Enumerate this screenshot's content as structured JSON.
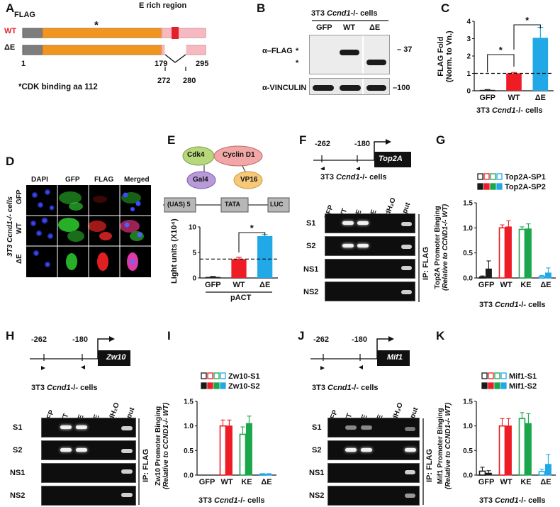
{
  "panel_A": {
    "label": "A",
    "flag_label": "FLAG",
    "region_label": "E rich region",
    "wt_label": "WT",
    "de_label": "ΔE",
    "star": "*",
    "pos_1": "1",
    "pos_179": "179",
    "pos_295": "295",
    "pos_272": "272",
    "pos_280": "280",
    "note": "*CDK binding aa 112",
    "colors": {
      "flag": "#7d7d7d",
      "core": "#f0951f",
      "erich": "#f6b9bf",
      "mark": "#e3202a"
    }
  },
  "panel_B": {
    "label": "B",
    "cells_prefix": "3T3 ",
    "cells_gene": "Ccnd1",
    "cells_suffix": "-/- cells",
    "lanes": [
      "GFP",
      "WT",
      "ΔE"
    ],
    "row1_label": "α–FLAG",
    "row2_label": "α-VINCULIN",
    "mw1": "37",
    "mw2": "100",
    "star1": "*",
    "star2": "*"
  },
  "panel_C": {
    "label": "C",
    "ylabel1": "FLAG Fold",
    "ylabel2": "(Norm. to Vn.)",
    "sig1": "*",
    "sig2": "*",
    "cells_prefix": "3T3 ",
    "cells_gene": "Ccnd1",
    "cells_suffix": "-/- cells"
  },
  "panel_D": {
    "label": "D",
    "cols": [
      "DAPI",
      "GFP",
      "FLAG",
      "Merged"
    ],
    "rows": [
      "GFP",
      "WT",
      "ΔE"
    ],
    "side_label": "3T3 Ccnd1-/- cells"
  },
  "panel_E": {
    "label": "E",
    "cdk4": "Cdk4",
    "cyclin": "Cyclin D1",
    "gal4": "Gal4",
    "vp16": "VP16",
    "uas": "(UAS) 5",
    "tata": "TATA",
    "luc": "LUC",
    "ylabel": "Light units (X10⁴)",
    "sig": "*",
    "group": "pACT"
  },
  "panel_F": {
    "label": "F",
    "pos1": "-262",
    "pos2": "-180",
    "gene": "Top2A",
    "cells_prefix": "3T3 ",
    "cells_gene": "Ccnd1",
    "cells_suffix": "-/- cells",
    "lanes": [
      "GFP",
      "WT",
      "KE",
      "ΔE",
      "ddH₂O",
      "Input"
    ],
    "rows": [
      "S1",
      "S2",
      "NS1",
      "NS2"
    ],
    "ip": "IP: FLAG"
  },
  "panel_G": {
    "label": "G",
    "legend1": "Top2A-SP1",
    "legend2": "Top2A-SP2",
    "ylabel1": "Top2A Promoter Binging",
    "ylabel2": "(Relative to CCND1-/- WT)",
    "cells_prefix": "3T3 ",
    "cells_gene": "Ccnd1",
    "cells_suffix": "-/- cells"
  },
  "panel_H": {
    "label": "H",
    "pos1": "-262",
    "pos2": "-180",
    "gene": "Zw10",
    "cells_prefix": "3T3 ",
    "cells_gene": "Ccnd1",
    "cells_suffix": "-/- cells",
    "lanes": [
      "GFP",
      "WT",
      "KE",
      "ΔE",
      "ddH₂O",
      "Input"
    ],
    "rows": [
      "S1",
      "S2",
      "NS1",
      "NS2"
    ],
    "ip": "IP: FLAG"
  },
  "panel_I": {
    "label": "I",
    "legend1": "Zw10-S1",
    "legend2": "Zw10-S2",
    "ylabel1": "Zw10 Promoter Binging",
    "ylabel2": "(Relative to CCND1-/- WT)",
    "cells_prefix": "3T3 ",
    "cells_gene": "Ccnd1",
    "cells_suffix": "-/- cells"
  },
  "panel_J": {
    "label": "J",
    "pos1": "-262",
    "pos2": "-180",
    "gene": "Mif1",
    "cells_prefix": "3T3 ",
    "cells_gene": "Ccnd1",
    "cells_suffix": "-/- cells",
    "lanes": [
      "GFP",
      "WT",
      "KE",
      "ΔE",
      "ddH₂O",
      "Input"
    ],
    "rows": [
      "S1",
      "S2",
      "NS1",
      "NS2"
    ],
    "ip": "IP: FLAG"
  },
  "panel_K": {
    "label": "K",
    "legend1": "Mif1-S1",
    "legend2": "Mif1-S2",
    "ylabel1": "Mif1 Promoter Binging",
    "ylabel2": "(Relative to CCND1-/- WT)",
    "cells_prefix": "3T3 ",
    "cells_gene": "Ccnd1",
    "cells_suffix": "-/- cells"
  },
  "chart_data": [
    {
      "id": "C",
      "type": "bar",
      "categories": [
        "GFP",
        "WT",
        "ΔE"
      ],
      "values": [
        0.05,
        1.0,
        3.05
      ],
      "errors": [
        0.02,
        0.05,
        0.6
      ],
      "colors": [
        "#1a1a1a",
        "#ee1c25",
        "#20a9e6"
      ],
      "ylim": [
        0,
        4
      ],
      "yticks": [
        0,
        1,
        2,
        3,
        4
      ],
      "reference_line": 1.0
    },
    {
      "id": "E",
      "type": "bar",
      "categories": [
        "GFP",
        "WT",
        "ΔE"
      ],
      "values": [
        0.2,
        3.7,
        8.2
      ],
      "errors": [
        0.1,
        0.35,
        0.3
      ],
      "colors": [
        "#1a1a1a",
        "#ee1c25",
        "#20a9e6"
      ],
      "ylim": [
        0,
        10
      ],
      "yticks": [
        0,
        5,
        10
      ],
      "reference_line": 3.7
    },
    {
      "id": "G",
      "type": "bar",
      "categories": [
        "GFP",
        "WT",
        "KE",
        "ΔE"
      ],
      "series": [
        {
          "name": "Top2A-SP1",
          "values": [
            0.02,
            1.0,
            0.97,
            0.03
          ],
          "errors": [
            0.02,
            0.06,
            0.05,
            0.02
          ],
          "fill": "open"
        },
        {
          "name": "Top2A-SP2",
          "values": [
            0.18,
            1.02,
            0.98,
            0.1
          ],
          "errors": [
            0.16,
            0.12,
            0.1,
            0.1
          ],
          "fill": "solid"
        }
      ],
      "colors": [
        "#1a1a1a",
        "#ee1c25",
        "#1aa64a",
        "#20a9e6"
      ],
      "ylim": [
        0,
        1.5
      ],
      "yticks": [
        0,
        0.5,
        1.0,
        1.5
      ]
    },
    {
      "id": "I",
      "type": "bar",
      "categories": [
        "GFP",
        "WT",
        "KE",
        "ΔE"
      ],
      "series": [
        {
          "name": "Zw10-S1",
          "values": [
            0.0,
            1.0,
            0.83,
            0.02
          ],
          "errors": [
            0.0,
            0.12,
            0.15,
            0.01
          ],
          "fill": "open"
        },
        {
          "name": "Zw10-S2",
          "values": [
            0.0,
            1.0,
            1.05,
            0.02
          ],
          "errors": [
            0.0,
            0.12,
            0.15,
            0.01
          ],
          "fill": "solid"
        }
      ],
      "colors": [
        "#1a1a1a",
        "#ee1c25",
        "#1aa64a",
        "#20a9e6"
      ],
      "ylim": [
        0,
        1.5
      ],
      "yticks": [
        0,
        0.5,
        1.0,
        1.5
      ]
    },
    {
      "id": "K",
      "type": "bar",
      "categories": [
        "GFP",
        "WT",
        "KE",
        "ΔE"
      ],
      "series": [
        {
          "name": "Mif1-S1",
          "values": [
            0.08,
            1.0,
            1.15,
            0.07
          ],
          "errors": [
            0.08,
            0.15,
            0.12,
            0.05
          ],
          "fill": "open"
        },
        {
          "name": "Mif1-S2",
          "values": [
            0.04,
            1.0,
            1.05,
            0.22
          ],
          "errors": [
            0.05,
            0.15,
            0.2,
            0.2
          ],
          "fill": "solid"
        }
      ],
      "colors": [
        "#1a1a1a",
        "#ee1c25",
        "#1aa64a",
        "#20a9e6"
      ],
      "ylim": [
        0,
        1.5
      ],
      "yticks": [
        0,
        0.5,
        1.0,
        1.5
      ]
    }
  ]
}
